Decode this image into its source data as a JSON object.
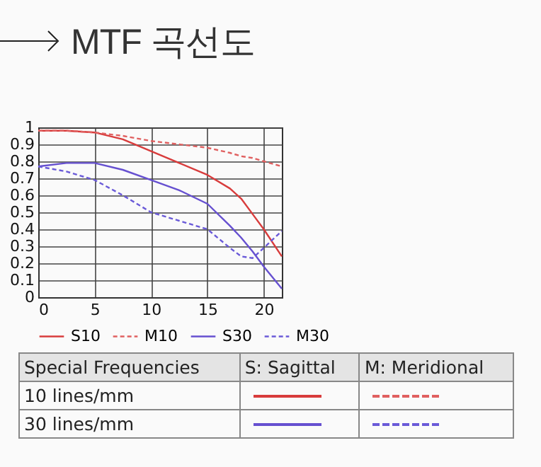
{
  "chart_data": {
    "type": "line",
    "title": "MTF 곡선도",
    "x": [
      0,
      2.5,
      5,
      7.5,
      10,
      12.5,
      15,
      17,
      18,
      19,
      20,
      21.6
    ],
    "series": [
      {
        "name": "S10",
        "color": "#d83c3c",
        "line_style": "solid",
        "values": [
          0.98,
          0.98,
          0.97,
          0.93,
          0.86,
          0.79,
          0.72,
          0.64,
          0.58,
          0.49,
          0.4,
          0.24
        ]
      },
      {
        "name": "M10",
        "color": "#e06060",
        "line_style": "dashed",
        "values": [
          0.98,
          0.98,
          0.97,
          0.95,
          0.92,
          0.9,
          0.88,
          0.85,
          0.83,
          0.82,
          0.8,
          0.77
        ]
      },
      {
        "name": "S30",
        "color": "#6650d0",
        "line_style": "solid",
        "values": [
          0.77,
          0.79,
          0.79,
          0.75,
          0.69,
          0.63,
          0.55,
          0.42,
          0.35,
          0.27,
          0.18,
          0.05
        ]
      },
      {
        "name": "M30",
        "color": "#6a5ad8",
        "line_style": "dashed",
        "values": [
          0.77,
          0.74,
          0.69,
          0.6,
          0.5,
          0.45,
          0.4,
          0.29,
          0.24,
          0.23,
          0.29,
          0.39
        ]
      }
    ],
    "xlim": [
      0,
      21.6
    ],
    "xticks": [
      0,
      5,
      10,
      15,
      20
    ],
    "ylim": [
      0,
      1
    ],
    "yticks": [
      0,
      0.1,
      0.2,
      0.3,
      0.4,
      0.5,
      0.6,
      0.7,
      0.8,
      0.9,
      1
    ],
    "grid": true,
    "legend": "bottom",
    "marker": "none",
    "annotations": [
      "Special Frequencies",
      "S: Sagittal",
      "M: Meridional",
      "10 lines/mm",
      "30 lines/mm"
    ]
  }
}
